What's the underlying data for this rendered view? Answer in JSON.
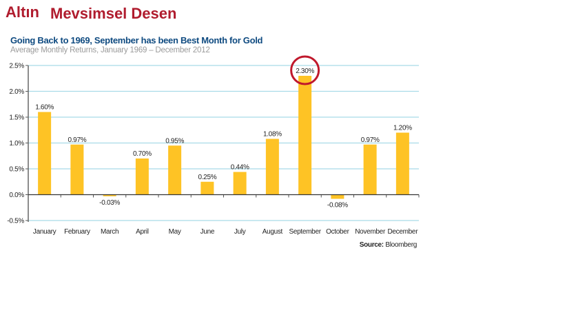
{
  "header": {
    "title_word1": "Altın",
    "title_word2": "Mevsimsel Desen"
  },
  "chart_data": {
    "type": "bar",
    "title": "Going Back to 1969, September has been Best Month for Gold",
    "subtitle": "Average Monthly Returns, January 1969 – December 2012",
    "categories": [
      "January",
      "February",
      "March",
      "April",
      "May",
      "June",
      "July",
      "August",
      "September",
      "October",
      "November",
      "December"
    ],
    "values": [
      1.6,
      0.97,
      -0.03,
      0.7,
      0.95,
      0.25,
      0.44,
      1.08,
      2.3,
      -0.08,
      0.97,
      1.2
    ],
    "data_labels": [
      "1.60%",
      "0.97%",
      "-0.03%",
      "0.70%",
      "0.95%",
      "0.25%",
      "0.44%",
      "1.08%",
      "2.30%",
      "-0.08%",
      "0.97%",
      "1.20%"
    ],
    "y_ticks": [
      2.5,
      2.0,
      1.5,
      1.0,
      0.5,
      0.0,
      -0.5
    ],
    "y_tick_labels": [
      "2.5%",
      "2.0%",
      "1.5%",
      "1.0%",
      "0.5%",
      "0.0%",
      "-0.5%"
    ],
    "ylim": [
      -0.5,
      2.5
    ],
    "highlight": "September",
    "source_label": "Source:",
    "source_value": "Bloomberg",
    "colors": {
      "bar": "#fec325",
      "grid": "#a8dbe8",
      "highlight": "#c0182c",
      "title": "#0e4a80"
    }
  }
}
